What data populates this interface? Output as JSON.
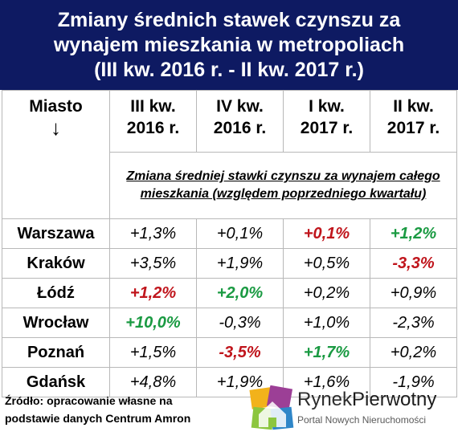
{
  "title": {
    "line1": "Zmiany średnich stawek czynszu za",
    "line2": "wynajem mieszkania w metropoliach",
    "line3": "(III kw. 2016 r. - II kw. 2017 r.)"
  },
  "table": {
    "city_header": "Miasto",
    "city_arrow": "↓",
    "quarters": [
      {
        "line1": "III kw.",
        "line2": "2016 r."
      },
      {
        "line1": "IV kw.",
        "line2": "2016 r."
      },
      {
        "line1": "I kw.",
        "line2": "2017 r."
      },
      {
        "line1": "II kw.",
        "line2": "2017 r."
      }
    ],
    "note": "Zmiana średniej stawki czynszu za wynajem całego mieszkania (względem poprzedniego kwartału)",
    "rows": [
      {
        "city": "Warszawa",
        "values": [
          "+1,3%",
          "+0,1%",
          "+0,1%",
          "+1,2%"
        ],
        "styles": [
          "normal",
          "normal",
          "red",
          "green"
        ]
      },
      {
        "city": "Kraków",
        "values": [
          "+3,5%",
          "+1,9%",
          "+0,5%",
          "-3,3%"
        ],
        "styles": [
          "normal",
          "normal",
          "normal",
          "red"
        ]
      },
      {
        "city": "Łódź",
        "values": [
          "+1,2%",
          "+2,0%",
          "+0,2%",
          "+0,9%"
        ],
        "styles": [
          "red",
          "green",
          "normal",
          "normal"
        ]
      },
      {
        "city": "Wrocław",
        "values": [
          "+10,0%",
          "-0,3%",
          "+1,0%",
          "-2,3%"
        ],
        "styles": [
          "green",
          "normal",
          "normal",
          "normal"
        ]
      },
      {
        "city": "Poznań",
        "values": [
          "+1,5%",
          "-3,5%",
          "+1,7%",
          "+0,2%"
        ],
        "styles": [
          "normal",
          "red",
          "green",
          "normal"
        ]
      },
      {
        "city": "Gdańsk",
        "values": [
          "+4,8%",
          "+1,9%",
          "+1,6%",
          "-1,9%"
        ],
        "styles": [
          "normal",
          "normal",
          "normal",
          "normal"
        ]
      }
    ]
  },
  "source": {
    "line1": "Źródło: opracowanie własne na",
    "line2": "podstawie danych Centrum Amron"
  },
  "logo": {
    "name_part1": "Rynek",
    "name_part2": "Pierwotny",
    "tagline": "Portal Nowych Nieruchomości",
    "icon": "house-logo-icon"
  },
  "colors": {
    "header_bg": "#0e1a62",
    "increase_highlight": "#1a9a42",
    "decrease_highlight": "#c0151c",
    "grid": "#b8b8b8"
  }
}
